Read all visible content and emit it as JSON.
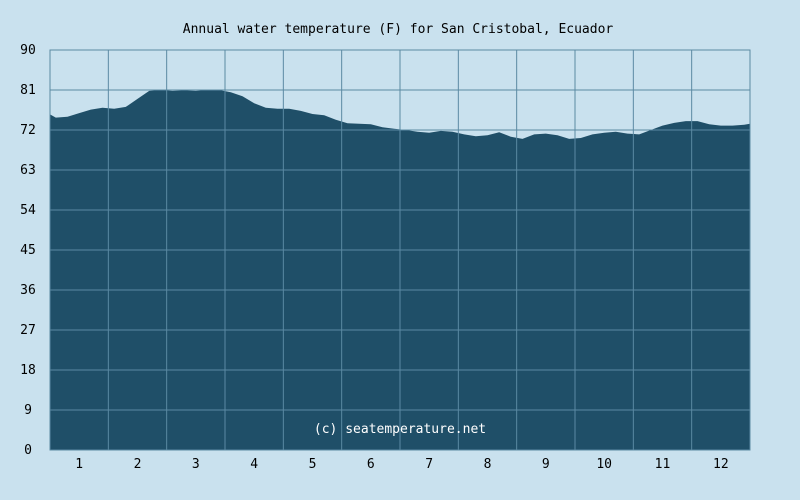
{
  "chart_data": {
    "type": "area",
    "title": "Annual water temperature (F) for San Cristobal, Ecuador",
    "xlabel": "",
    "ylabel": "",
    "watermark": "(c) seatemperature.net",
    "x_ticks": [
      "1",
      "2",
      "3",
      "4",
      "5",
      "6",
      "7",
      "8",
      "9",
      "10",
      "11",
      "12"
    ],
    "y_ticks": [
      "0",
      "9",
      "18",
      "27",
      "36",
      "45",
      "54",
      "63",
      "72",
      "81",
      "90"
    ],
    "ylim": [
      0,
      90
    ],
    "xlim": [
      0.5,
      12.5
    ],
    "grid": true,
    "colors": {
      "background": "#c9e1ee",
      "fill": "#1f4f68",
      "grid": "#5b8aa3"
    },
    "series": [
      {
        "x": [
          0.5,
          0.6,
          0.8,
          1.0,
          1.2,
          1.4,
          1.6,
          1.8,
          2.0,
          2.2,
          2.4,
          2.6,
          2.8,
          3.0,
          3.2,
          3.4,
          3.6,
          3.8,
          4.0,
          4.2,
          4.4,
          4.6,
          4.8,
          5.0,
          5.2,
          5.4,
          5.6,
          5.8,
          6.0,
          6.2,
          6.4,
          6.6,
          6.8,
          7.0,
          7.2,
          7.4,
          7.6,
          7.8,
          8.0,
          8.2,
          8.4,
          8.6,
          8.8,
          9.0,
          9.2,
          9.4,
          9.6,
          9.8,
          10.0,
          10.2,
          10.4,
          10.6,
          10.8,
          11.0,
          11.2,
          11.4,
          11.6,
          11.8,
          12.0,
          12.2,
          12.4,
          12.5
        ],
        "values": [
          75.5,
          74.8,
          75.0,
          75.8,
          76.6,
          77.0,
          76.8,
          77.2,
          79.0,
          80.8,
          81.0,
          80.8,
          80.9,
          80.8,
          81.0,
          81.0,
          80.5,
          79.6,
          78.0,
          77.0,
          76.8,
          76.8,
          76.3,
          75.6,
          75.3,
          74.3,
          73.5,
          73.4,
          73.3,
          72.6,
          72.3,
          72.0,
          71.6,
          71.4,
          71.8,
          71.6,
          71.0,
          70.6,
          70.8,
          71.5,
          70.5,
          70.0,
          71.0,
          71.2,
          70.8,
          70.0,
          70.2,
          71.0,
          71.4,
          71.6,
          71.2,
          71.0,
          72.0,
          73.0,
          73.6,
          74.0,
          74.0,
          73.3,
          73.0,
          73.0,
          73.2,
          73.4
        ]
      }
    ]
  }
}
